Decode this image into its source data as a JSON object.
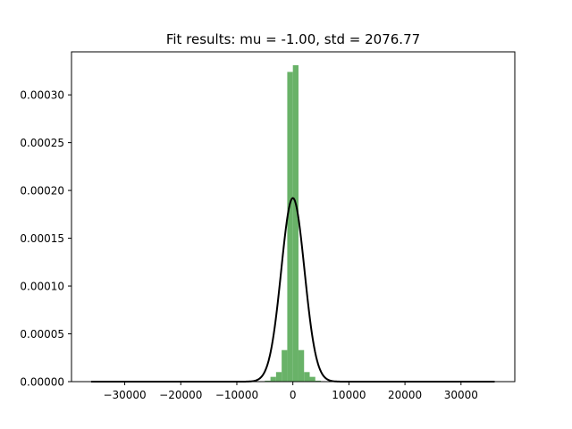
{
  "chart_data": {
    "type": "bar",
    "title": "Fit results: mu = -1.00,  std = 2076.77",
    "xlabel": "",
    "ylabel": "",
    "xlim": [
      -39500,
      39600
    ],
    "ylim": [
      0,
      0.000345
    ],
    "grid": false,
    "x_ticks": [
      -30000,
      -20000,
      -10000,
      0,
      10000,
      20000,
      30000
    ],
    "x_tick_labels": [
      "−30000",
      "−20000",
      "−10000",
      "0",
      "10000",
      "20000",
      "30000"
    ],
    "y_ticks": [
      0,
      5e-05,
      0.0001,
      0.00015,
      0.0002,
      0.00025,
      0.0003
    ],
    "y_tick_labels": [
      "0.00000",
      "0.00005",
      "0.00010",
      "0.00015",
      "0.00020",
      "0.00025",
      "0.00030"
    ],
    "series": [
      {
        "kind": "histogram",
        "color": "#69b268",
        "bin_width": 1000,
        "bins": [
          {
            "x0": -5000,
            "x1": -4000,
            "value": 1e-06
          },
          {
            "x0": -4000,
            "x1": -3000,
            "value": 5e-06
          },
          {
            "x0": -3000,
            "x1": -2000,
            "value": 1e-05
          },
          {
            "x0": -2000,
            "x1": -1000,
            "value": 3.3e-05
          },
          {
            "x0": -1000,
            "x1": 0,
            "value": 0.000324
          },
          {
            "x0": 0,
            "x1": 1000,
            "value": 0.000331
          },
          {
            "x0": 1000,
            "x1": 2000,
            "value": 3.3e-05
          },
          {
            "x0": 2000,
            "x1": 3000,
            "value": 1e-05
          },
          {
            "x0": 3000,
            "x1": 4000,
            "value": 5e-06
          },
          {
            "x0": 4000,
            "x1": 5000,
            "value": 1e-06
          }
        ]
      },
      {
        "kind": "line",
        "color": "#000000",
        "mu": -1.0,
        "std": 2076.77,
        "x_range": [
          -36000,
          36000
        ]
      }
    ]
  }
}
